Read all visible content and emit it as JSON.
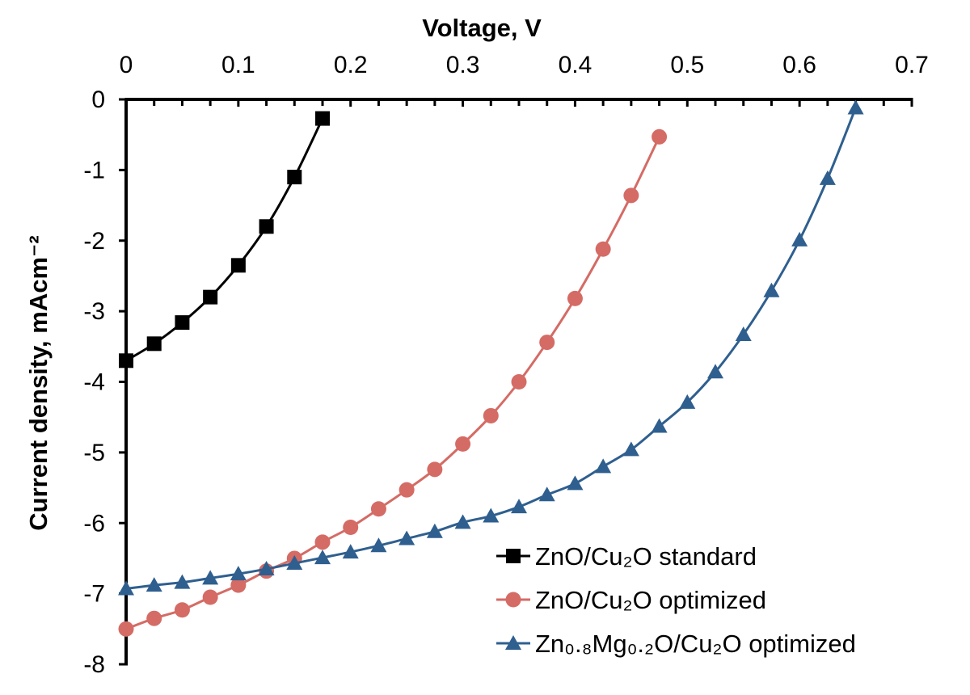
{
  "chart_data": {
    "type": "line",
    "title": "",
    "xlabel": "Voltage, V",
    "ylabel": "Current density, mAcm⁻²",
    "xlim": [
      0,
      0.7
    ],
    "ylim": [
      -8,
      0
    ],
    "xticks": [
      "0",
      "0.1",
      "0.2",
      "0.3",
      "0.4",
      "0.5",
      "0.6",
      "0.7"
    ],
    "yticks": [
      "0",
      "-1",
      "-2",
      "-3",
      "-4",
      "-5",
      "-6",
      "-7",
      "-8"
    ],
    "x_axis_position": "top",
    "grid": false,
    "legend_position": "bottom-right",
    "series": [
      {
        "name": "ZnO/Cu₂O standard",
        "color": "#000000",
        "marker": "square",
        "points": [
          [
            0,
            -3.7
          ],
          [
            0.025,
            -3.46
          ],
          [
            0.05,
            -3.16
          ],
          [
            0.075,
            -2.8
          ],
          [
            0.1,
            -2.35
          ],
          [
            0.125,
            -1.8
          ],
          [
            0.15,
            -1.1
          ],
          [
            0.175,
            -0.27
          ]
        ]
      },
      {
        "name": "ZnO/Cu₂O optimized",
        "color": "#D56B65",
        "marker": "circle",
        "points": [
          [
            0,
            -7.5
          ],
          [
            0.025,
            -7.35
          ],
          [
            0.05,
            -7.23
          ],
          [
            0.075,
            -7.05
          ],
          [
            0.1,
            -6.88
          ],
          [
            0.125,
            -6.68
          ],
          [
            0.15,
            -6.5
          ],
          [
            0.175,
            -6.27
          ],
          [
            0.2,
            -6.06
          ],
          [
            0.225,
            -5.8
          ],
          [
            0.25,
            -5.53
          ],
          [
            0.275,
            -5.24
          ],
          [
            0.3,
            -4.88
          ],
          [
            0.325,
            -4.48
          ],
          [
            0.35,
            -4.0
          ],
          [
            0.375,
            -3.44
          ],
          [
            0.4,
            -2.82
          ],
          [
            0.425,
            -2.12
          ],
          [
            0.45,
            -1.36
          ],
          [
            0.475,
            -0.53
          ]
        ]
      },
      {
        "name": "Zn₀.₈Mg₀.₂O/Cu₂O optimized",
        "color": "#2F5F8F",
        "marker": "triangle",
        "points": [
          [
            0,
            -6.93
          ],
          [
            0.025,
            -6.88
          ],
          [
            0.05,
            -6.84
          ],
          [
            0.075,
            -6.78
          ],
          [
            0.1,
            -6.72
          ],
          [
            0.125,
            -6.65
          ],
          [
            0.15,
            -6.57
          ],
          [
            0.175,
            -6.49
          ],
          [
            0.2,
            -6.41
          ],
          [
            0.225,
            -6.32
          ],
          [
            0.25,
            -6.22
          ],
          [
            0.275,
            -6.12
          ],
          [
            0.3,
            -5.99
          ],
          [
            0.325,
            -5.9
          ],
          [
            0.35,
            -5.77
          ],
          [
            0.375,
            -5.6
          ],
          [
            0.4,
            -5.44
          ],
          [
            0.425,
            -5.2
          ],
          [
            0.45,
            -4.96
          ],
          [
            0.475,
            -4.63
          ],
          [
            0.5,
            -4.29
          ],
          [
            0.525,
            -3.86
          ],
          [
            0.55,
            -3.33
          ],
          [
            0.575,
            -2.71
          ],
          [
            0.6,
            -1.99
          ],
          [
            0.625,
            -1.12
          ],
          [
            0.65,
            -0.12
          ]
        ]
      }
    ]
  }
}
